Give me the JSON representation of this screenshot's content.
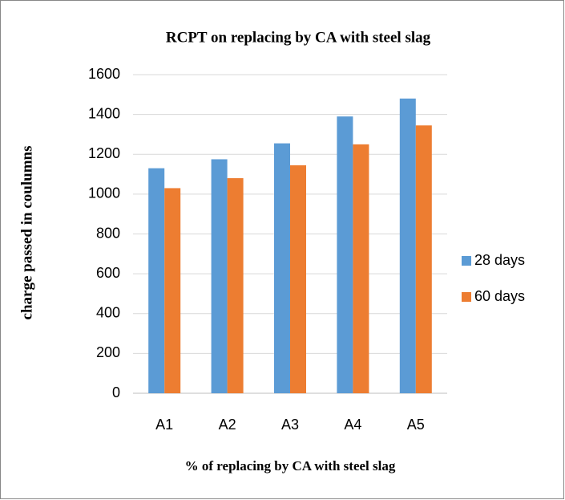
{
  "chart_data": {
    "type": "bar",
    "title": "RCPT on replacing by CA with steel slag",
    "x_label": "% of replacing by CA with steel slag",
    "y_label": "charge passed in coulumns",
    "categories": [
      "A1",
      "A2",
      "A3",
      "A4",
      "A5"
    ],
    "series": [
      {
        "name": "28 days",
        "color": "#5b9bd5",
        "values": [
          1130,
          1175,
          1255,
          1390,
          1480
        ]
      },
      {
        "name": "60 days",
        "color": "#ed7d31",
        "values": [
          1030,
          1080,
          1145,
          1250,
          1345
        ]
      }
    ],
    "ylim": [
      0,
      1600
    ],
    "yticks": [
      0,
      200,
      400,
      600,
      800,
      1000,
      1200,
      1400,
      1600
    ],
    "grid": true,
    "legend": "right"
  }
}
